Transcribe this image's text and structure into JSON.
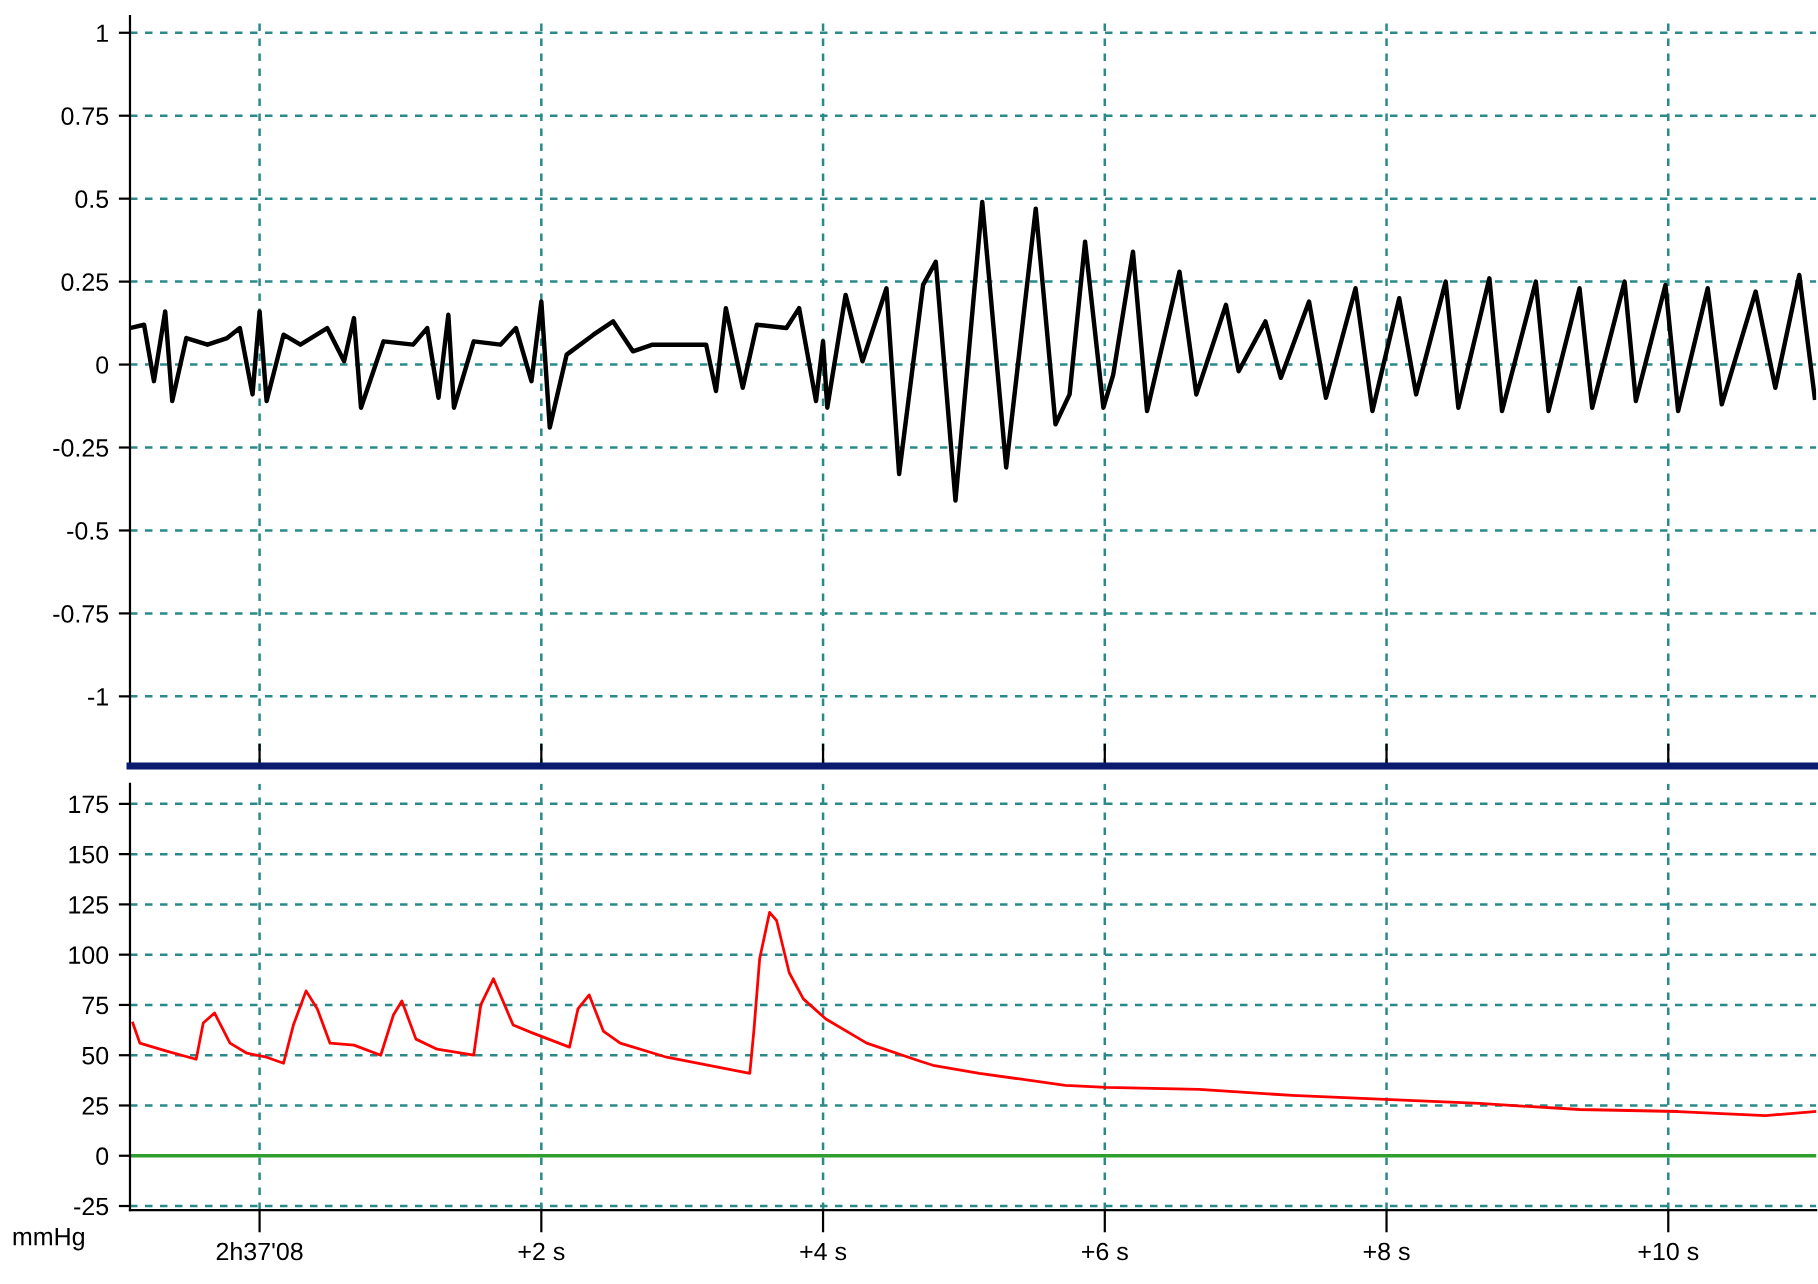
{
  "chart_data": [
    {
      "type": "line",
      "xlim": [
        -0.92,
        11.05
      ],
      "ylim": [
        -1.21,
        1.05
      ],
      "xticks": [
        0,
        2,
        4,
        6,
        8,
        10
      ],
      "yticks": [
        1,
        0.75,
        0.5,
        0.25,
        0,
        -0.25,
        -0.5,
        -0.75,
        -1
      ],
      "tick_labels": "y",
      "grid": true,
      "marker": "none",
      "line_style": "solid",
      "series": [
        {
          "color": "#000000",
          "x": [
            -0.92,
            -0.82,
            -0.75,
            -0.67,
            -0.62,
            -0.52,
            -0.37,
            -0.23,
            -0.14,
            -0.05,
            0.0,
            0.05,
            0.17,
            0.29,
            0.48,
            0.6,
            0.67,
            0.72,
            0.88,
            1.09,
            1.19,
            1.27,
            1.34,
            1.38,
            1.52,
            1.71,
            1.82,
            1.93,
            2.0,
            2.06,
            2.18,
            2.37,
            2.51,
            2.65,
            2.79,
            3.17,
            3.24,
            3.31,
            3.43,
            3.53,
            3.74,
            3.83,
            3.95,
            4.0,
            4.03,
            4.16,
            4.28,
            4.45,
            4.54,
            4.71,
            4.8,
            4.94,
            5.13,
            5.3,
            5.51,
            5.65,
            5.75,
            5.86,
            5.99,
            6.06,
            6.2,
            6.3,
            6.53,
            6.65,
            6.86,
            6.95,
            7.14,
            7.25,
            7.45,
            7.57,
            7.78,
            7.9,
            8.09,
            8.21,
            8.42,
            8.51,
            8.73,
            8.82,
            9.06,
            9.15,
            9.37,
            9.46,
            9.69,
            9.77,
            9.98,
            10.07,
            10.28,
            10.38,
            10.62,
            10.76,
            10.93,
            11.04
          ],
          "values": [
            0.11,
            0.12,
            -0.05,
            0.16,
            -0.11,
            0.08,
            0.06,
            0.08,
            0.11,
            -0.09,
            0.16,
            -0.11,
            0.09,
            0.06,
            0.11,
            0.01,
            0.14,
            -0.13,
            0.07,
            0.06,
            0.11,
            -0.1,
            0.15,
            -0.13,
            0.07,
            0.06,
            0.11,
            -0.05,
            0.19,
            -0.19,
            0.03,
            0.09,
            0.13,
            0.04,
            0.06,
            0.06,
            -0.08,
            0.17,
            -0.07,
            0.12,
            0.11,
            0.17,
            -0.11,
            0.07,
            -0.13,
            0.21,
            0.01,
            0.23,
            -0.33,
            0.24,
            0.31,
            -0.41,
            0.49,
            -0.31,
            0.47,
            -0.18,
            -0.09,
            0.37,
            -0.13,
            -0.03,
            0.34,
            -0.14,
            0.28,
            -0.09,
            0.18,
            -0.02,
            0.13,
            -0.04,
            0.19,
            -0.1,
            0.23,
            -0.14,
            0.2,
            -0.09,
            0.25,
            -0.13,
            0.26,
            -0.14,
            0.25,
            -0.14,
            0.23,
            -0.13,
            0.25,
            -0.11,
            0.24,
            -0.14,
            0.23,
            -0.12,
            0.22,
            -0.07,
            0.27,
            -0.1
          ]
        }
      ]
    },
    {
      "type": "line",
      "xlim": [
        -0.92,
        11.05
      ],
      "ylim": [
        -27,
        185
      ],
      "ylabel": "mmHg",
      "xticks": [
        {
          "value": 0,
          "label": "2h37'08"
        },
        {
          "value": 2,
          "label": "+2 s"
        },
        {
          "value": 4,
          "label": "+4 s"
        },
        {
          "value": 6,
          "label": "+6 s"
        },
        {
          "value": 8,
          "label": "+8 s"
        },
        {
          "value": 10,
          "label": "+10 s"
        }
      ],
      "yticks": [
        175,
        150,
        125,
        100,
        75,
        50,
        25,
        0,
        -25
      ],
      "grid": true,
      "marker": "none",
      "line_style": "solid",
      "ref_lines": [
        {
          "axis": "y",
          "value": 0,
          "color": "#2e9e2e"
        }
      ],
      "series": [
        {
          "color": "#ff0000",
          "x": [
            -0.9,
            -0.85,
            -0.66,
            -0.45,
            -0.4,
            -0.32,
            -0.21,
            -0.09,
            0.05,
            0.17,
            0.24,
            0.33,
            0.41,
            0.5,
            0.67,
            0.86,
            0.95,
            1.01,
            1.11,
            1.26,
            1.52,
            1.57,
            1.66,
            1.8,
            1.94,
            2.2,
            2.26,
            2.34,
            2.44,
            2.56,
            2.89,
            3.48,
            3.51,
            3.55,
            3.62,
            3.67,
            3.76,
            3.86,
            4.02,
            4.31,
            4.69,
            4.78,
            5.11,
            5.72,
            6.01,
            6.67,
            7.33,
            7.99,
            8.66,
            9.37,
            10.07,
            10.69,
            11.05
          ],
          "values": [
            66,
            56,
            52,
            48,
            66,
            71,
            56,
            51,
            49,
            46,
            65,
            82,
            73,
            56,
            55,
            50,
            70,
            77,
            58,
            53,
            50,
            75,
            88,
            65,
            61,
            54,
            73,
            80,
            62,
            56,
            49,
            41,
            63,
            98,
            121,
            117,
            91,
            78,
            68,
            56,
            47,
            45,
            41,
            35,
            34,
            33,
            30,
            28,
            26,
            23,
            22,
            20,
            22
          ]
        }
      ]
    }
  ]
}
